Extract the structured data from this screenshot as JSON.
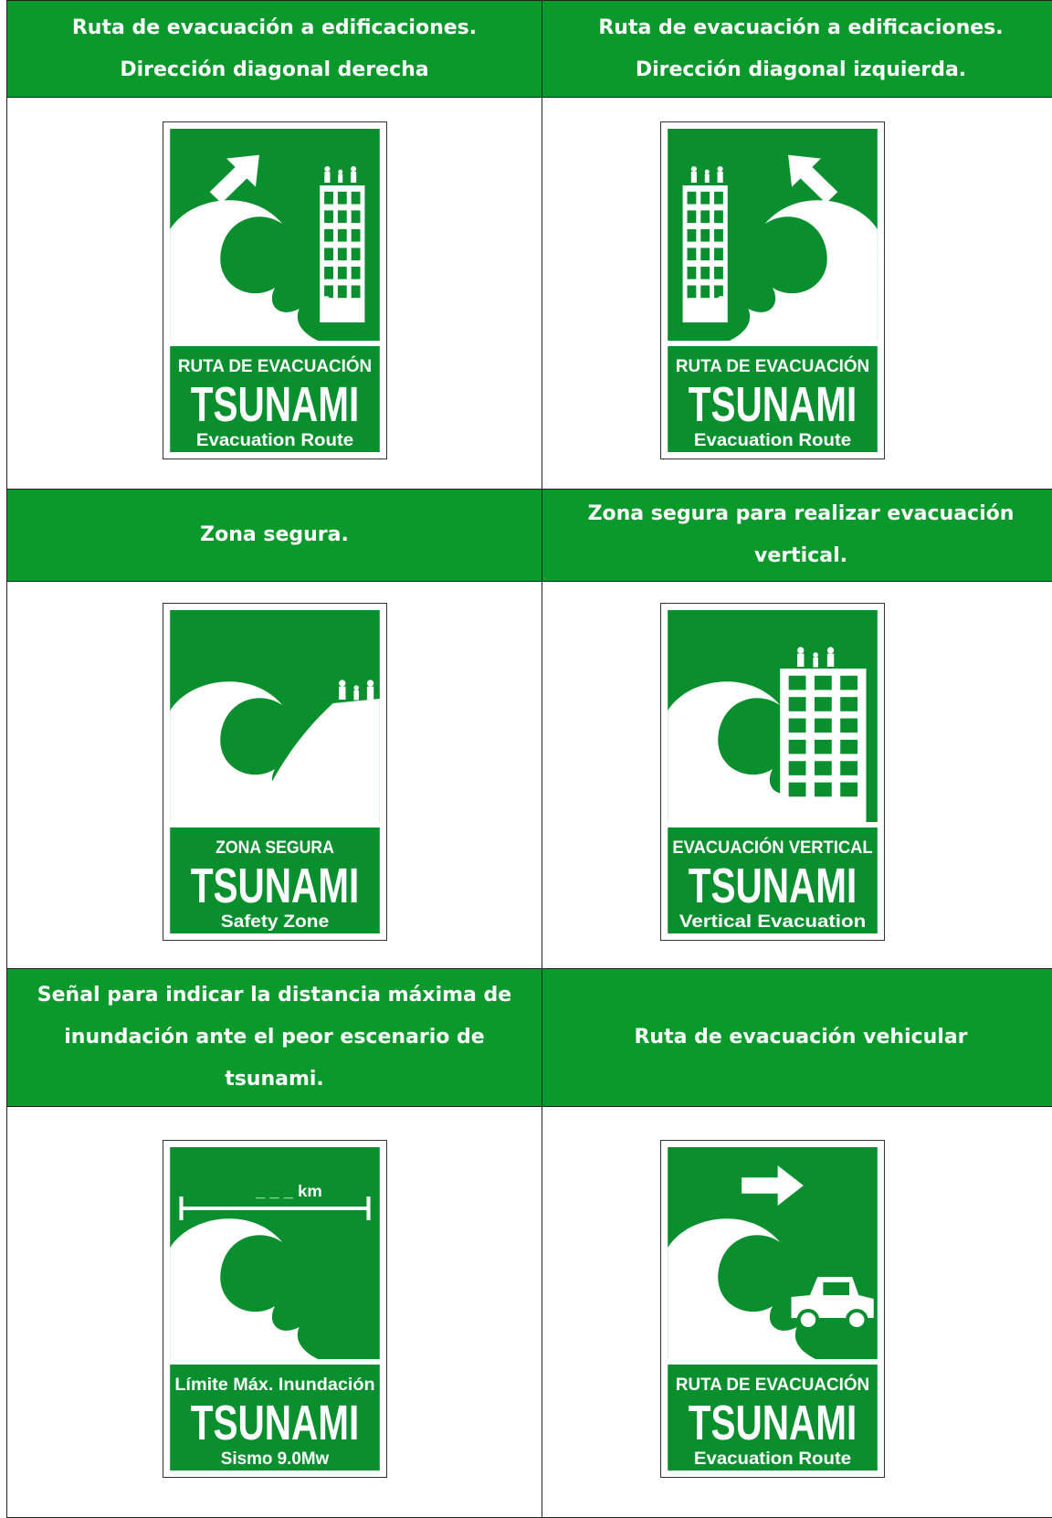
{
  "table": {
    "rows": [
      {
        "cells": [
          {
            "heading": "Ruta de evacuación a edificaciones. Dirección diagonal derecha",
            "sign": {
              "label": "RUTA DE EVACUACIÓN",
              "title": "TSUNAMI",
              "subtitle": "Evacuation Route"
            }
          },
          {
            "heading": "Ruta de evacuación a edificaciones. Dirección diagonal izquierda.",
            "sign": {
              "label": "RUTA DE EVACUACIÓN",
              "title": "TSUNAMI",
              "subtitle": "Evacuation Route"
            }
          }
        ]
      },
      {
        "cells": [
          {
            "heading": "Zona segura.",
            "sign": {
              "label": "ZONA SEGURA",
              "title": "TSUNAMI",
              "subtitle": "Safety Zone"
            }
          },
          {
            "heading": "Zona segura para realizar evacuación vertical.",
            "sign": {
              "label": "EVACUACIÓN VERTICAL",
              "title": "TSUNAMI",
              "subtitle": "Vertical Evacuation"
            }
          }
        ]
      },
      {
        "cells": [
          {
            "heading": "Señal para indicar la distancia máxima de inundación ante el peor escenario de tsunami.",
            "sign": {
              "scale_label": "_ _ _ km",
              "label": "Límite Máx. Inundación",
              "title": "TSUNAMI",
              "subtitle": "Sismo 9.0Mw"
            }
          },
          {
            "heading": "Ruta de evacuación vehicular",
            "sign": {
              "label": "RUTA DE EVACUACIÓN",
              "title": "TSUNAMI",
              "subtitle": "Evacuation Route"
            }
          }
        ]
      }
    ]
  }
}
